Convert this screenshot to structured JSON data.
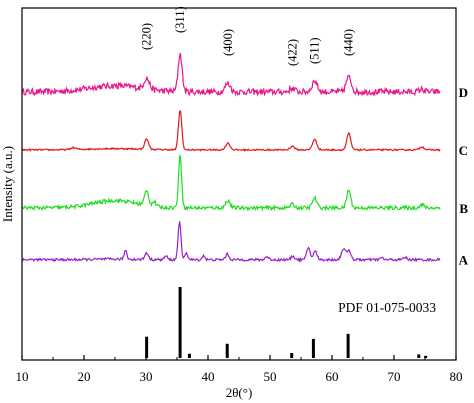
{
  "chart_data": {
    "type": "line",
    "xlabel": "2θ(°)",
    "ylabel": "Intensity (a.u.)",
    "xlim": [
      10,
      80
    ],
    "x_ticks": [
      10,
      20,
      30,
      40,
      50,
      60,
      70,
      80
    ],
    "y_ticks": [],
    "grid": false,
    "peak_annotations": [
      {
        "label": "(220)",
        "x": 30.1
      },
      {
        "label": "(311)",
        "x": 35.5
      },
      {
        "label": "(400)",
        "x": 43.2
      },
      {
        "label": "(422)",
        "x": 53.6
      },
      {
        "label": "(511)",
        "x": 57.2
      },
      {
        "label": "(440)",
        "x": 62.7
      }
    ],
    "series": [
      {
        "name": "D",
        "color": "#e8178a",
        "baseline": 3.0,
        "noise": 0.05,
        "hump": {
          "center": 25,
          "width": 6,
          "height": 0.1
        },
        "peaks": [
          [
            30.1,
            0.18,
            0.6
          ],
          [
            35.5,
            0.62,
            0.45
          ],
          [
            43.2,
            0.14,
            0.6
          ],
          [
            53.6,
            0.06,
            0.6
          ],
          [
            57.2,
            0.18,
            0.6
          ],
          [
            62.7,
            0.24,
            0.6
          ],
          [
            74.5,
            0.04,
            0.6
          ]
        ]
      },
      {
        "name": "C",
        "color": "#e31a1c",
        "baseline": 2.05,
        "noise": 0.012,
        "hump": {
          "center": 25,
          "width": 6,
          "height": 0.02
        },
        "peaks": [
          [
            18.3,
            0.03,
            0.6
          ],
          [
            30.1,
            0.17,
            0.45
          ],
          [
            35.5,
            0.65,
            0.38
          ],
          [
            43.2,
            0.11,
            0.5
          ],
          [
            53.6,
            0.06,
            0.5
          ],
          [
            57.2,
            0.17,
            0.5
          ],
          [
            62.7,
            0.27,
            0.45
          ],
          [
            74.5,
            0.05,
            0.5
          ]
        ]
      },
      {
        "name": "B",
        "color": "#22dd22",
        "baseline": 1.1,
        "noise": 0.03,
        "hump": {
          "center": 25,
          "width": 5,
          "height": 0.12
        },
        "peaks": [
          [
            30.1,
            0.25,
            0.45
          ],
          [
            31.3,
            0.08,
            0.4
          ],
          [
            35.5,
            0.85,
            0.35
          ],
          [
            43.2,
            0.12,
            0.5
          ],
          [
            53.6,
            0.06,
            0.5
          ],
          [
            57.2,
            0.16,
            0.5
          ],
          [
            62.7,
            0.3,
            0.45
          ],
          [
            74.5,
            0.05,
            0.5
          ]
        ]
      },
      {
        "name": "A",
        "color": "#9b1fc9",
        "baseline": 0.25,
        "noise": 0.02,
        "hump": {
          "center": 25,
          "width": 5,
          "height": 0.01
        },
        "peaks": [
          [
            26.7,
            0.15,
            0.3
          ],
          [
            30.1,
            0.11,
            0.4
          ],
          [
            33.2,
            0.06,
            0.35
          ],
          [
            35.4,
            0.62,
            0.33
          ],
          [
            36.5,
            0.12,
            0.3
          ],
          [
            39.3,
            0.07,
            0.3
          ],
          [
            43.1,
            0.09,
            0.4
          ],
          [
            49.5,
            0.05,
            0.4
          ],
          [
            53.7,
            0.06,
            0.4
          ],
          [
            56.2,
            0.2,
            0.4
          ],
          [
            57.3,
            0.14,
            0.4
          ],
          [
            61.9,
            0.19,
            0.5
          ],
          [
            62.8,
            0.14,
            0.4
          ],
          [
            68.0,
            0.03,
            0.4
          ],
          [
            71.8,
            0.04,
            0.4
          ]
        ]
      }
    ],
    "reference": {
      "label": "PDF 01-075-0033",
      "peaks": [
        {
          "x": 30.1,
          "intensity": 0.3
        },
        {
          "x": 35.5,
          "intensity": 1.0
        },
        {
          "x": 37.0,
          "intensity": 0.06
        },
        {
          "x": 43.1,
          "intensity": 0.2
        },
        {
          "x": 53.5,
          "intensity": 0.07
        },
        {
          "x": 57.0,
          "intensity": 0.27
        },
        {
          "x": 62.6,
          "intensity": 0.34
        },
        {
          "x": 74.0,
          "intensity": 0.05
        },
        {
          "x": 75.1,
          "intensity": 0.03
        }
      ]
    }
  }
}
